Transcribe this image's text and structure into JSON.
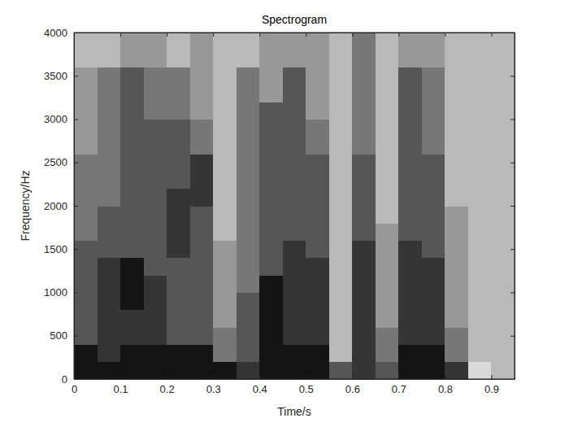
{
  "chart_data": {
    "type": "heatmap",
    "title": "Spectrogram",
    "x_label": "Time/s",
    "y_label": "Frequency/Hz",
    "xlim": [
      0,
      0.95
    ],
    "ylim": [
      0,
      4000
    ],
    "xticks": [
      0,
      0.1,
      0.2,
      0.3,
      0.4,
      0.5,
      0.6,
      0.7,
      0.8,
      0.9
    ],
    "yticks": [
      0,
      500,
      1000,
      1500,
      2000,
      2500,
      3000,
      3500,
      4000
    ],
    "color": "gray",
    "x": [
      0,
      0.05,
      0.1,
      0.15,
      0.2,
      0.25,
      0.3,
      0.35,
      0.4,
      0.45,
      0.5,
      0.55,
      0.6,
      0.65,
      0.7,
      0.75,
      0.8,
      0.85,
      0.9
    ],
    "y": [
      0,
      200,
      400,
      600,
      800,
      1000,
      1200,
      1400,
      1600,
      1800,
      2000,
      2200,
      2400,
      2600,
      2800,
      3000,
      3200,
      3400,
      3600,
      3800
    ],
    "z": [
      [
        8,
        8,
        8,
        8,
        8,
        8,
        8,
        7,
        8,
        8,
        8,
        6,
        7,
        6,
        8,
        8,
        7,
        2,
        3
      ],
      [
        8,
        7,
        8,
        8,
        8,
        8,
        5,
        6,
        8,
        8,
        8,
        3,
        7,
        5,
        8,
        8,
        5,
        3,
        3
      ],
      [
        6,
        7,
        7,
        7,
        6,
        6,
        5,
        6,
        8,
        7,
        7,
        3,
        7,
        5,
        7,
        7,
        5,
        3,
        3
      ],
      [
        6,
        7,
        7,
        7,
        6,
        6,
        4,
        6,
        8,
        7,
        7,
        3,
        7,
        4,
        7,
        7,
        4,
        3,
        3
      ],
      [
        6,
        7,
        8,
        7,
        6,
        6,
        4,
        6,
        8,
        7,
        7,
        3,
        7,
        4,
        7,
        7,
        4,
        3,
        3
      ],
      [
        6,
        7,
        8,
        7,
        6,
        6,
        4,
        5,
        8,
        7,
        7,
        3,
        7,
        4,
        7,
        7,
        4,
        3,
        3
      ],
      [
        6,
        7,
        8,
        6,
        6,
        6,
        4,
        5,
        6,
        7,
        7,
        3,
        7,
        4,
        7,
        7,
        4,
        3,
        3
      ],
      [
        6,
        6,
        6,
        6,
        7,
        6,
        4,
        5,
        6,
        7,
        6,
        3,
        7,
        4,
        7,
        6,
        4,
        3,
        3
      ],
      [
        5,
        6,
        6,
        6,
        7,
        6,
        3,
        5,
        6,
        6,
        6,
        3,
        6,
        4,
        6,
        6,
        4,
        3,
        3
      ],
      [
        5,
        6,
        6,
        6,
        7,
        6,
        3,
        5,
        6,
        6,
        6,
        3,
        6,
        3,
        6,
        6,
        4,
        3,
        3
      ],
      [
        5,
        5,
        6,
        6,
        7,
        7,
        3,
        5,
        6,
        6,
        6,
        3,
        6,
        3,
        6,
        6,
        3,
        3,
        3
      ],
      [
        5,
        5,
        6,
        6,
        6,
        7,
        3,
        5,
        6,
        6,
        6,
        3,
        6,
        3,
        6,
        6,
        3,
        3,
        3
      ],
      [
        5,
        5,
        6,
        6,
        6,
        7,
        3,
        5,
        6,
        6,
        6,
        3,
        6,
        3,
        6,
        6,
        3,
        3,
        3
      ],
      [
        4,
        5,
        6,
        6,
        6,
        5,
        3,
        5,
        6,
        6,
        5,
        3,
        5,
        3,
        6,
        5,
        3,
        3,
        3
      ],
      [
        4,
        5,
        6,
        6,
        6,
        5,
        3,
        5,
        6,
        6,
        5,
        3,
        5,
        3,
        6,
        5,
        3,
        3,
        3
      ],
      [
        4,
        5,
        6,
        5,
        5,
        4,
        3,
        5,
        6,
        6,
        4,
        3,
        5,
        3,
        6,
        5,
        3,
        3,
        3
      ],
      [
        4,
        5,
        6,
        5,
        5,
        4,
        3,
        5,
        4,
        6,
        4,
        3,
        5,
        3,
        6,
        5,
        3,
        3,
        3
      ],
      [
        4,
        5,
        6,
        5,
        5,
        4,
        3,
        5,
        4,
        6,
        4,
        3,
        5,
        3,
        6,
        5,
        3,
        3,
        3
      ],
      [
        3,
        3,
        4,
        4,
        3,
        4,
        3,
        3,
        4,
        4,
        4,
        3,
        5,
        3,
        4,
        4,
        3,
        3,
        3
      ],
      [
        3,
        3,
        4,
        4,
        3,
        4,
        3,
        3,
        4,
        4,
        4,
        3,
        5,
        3,
        4,
        4,
        3,
        3,
        3
      ]
    ]
  }
}
